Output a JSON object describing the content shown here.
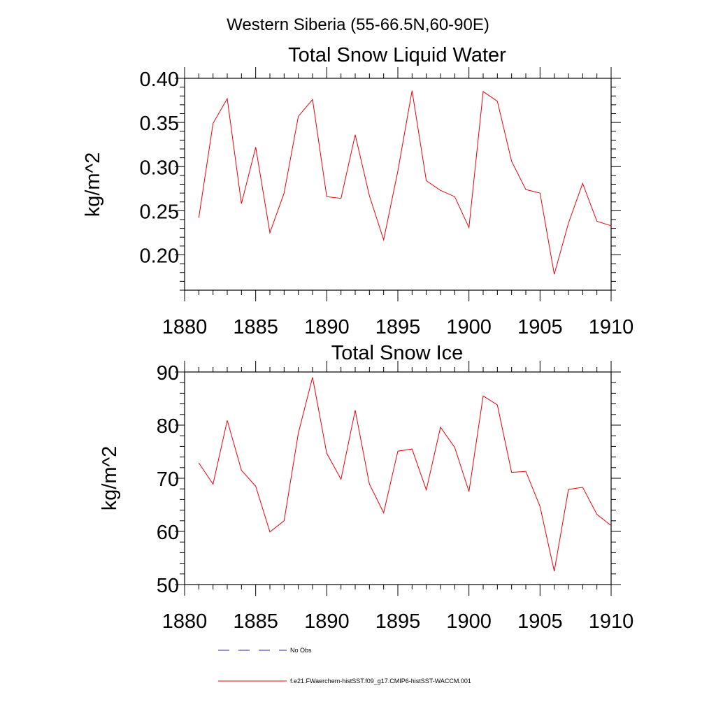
{
  "figure": {
    "suptitle": "Western Siberia (55-66.5N,60-90E)",
    "line_color": "#e8000b",
    "obs_color": "#2a2aa0",
    "legend": {
      "obs_label": "No Obs",
      "model_label": "f.e21.FWaerchem-histSST.f09_g17.CMIP6-histSST-WACCM.001"
    }
  },
  "chart_data": [
    {
      "type": "line",
      "title": "Total Snow Liquid Water",
      "xlabel": "",
      "ylabel": "kg/m^2",
      "xlim": [
        1880,
        1910
      ],
      "ylim": [
        0.16,
        0.4
      ],
      "xticks": [
        "1880",
        "1885",
        "1890",
        "1895",
        "1900",
        "1905",
        "1910"
      ],
      "yticks": [
        "0.20",
        "0.25",
        "0.30",
        "0.35",
        "0.40"
      ],
      "x": [
        1881,
        1882,
        1883,
        1884,
        1885,
        1886,
        1887,
        1888,
        1889,
        1890,
        1891,
        1892,
        1893,
        1894,
        1895,
        1896,
        1897,
        1898,
        1899,
        1900,
        1901,
        1902,
        1903,
        1904,
        1905,
        1906,
        1907,
        1908,
        1909,
        1910
      ],
      "series": [
        {
          "values": [
            0.242,
            0.349,
            0.377,
            0.258,
            0.322,
            0.225,
            0.27,
            0.357,
            0.376,
            0.266,
            0.264,
            0.336,
            0.267,
            0.217,
            0.295,
            0.386,
            0.284,
            0.273,
            0.266,
            0.231,
            0.385,
            0.374,
            0.306,
            0.274,
            0.27,
            0.178,
            0.236,
            0.281,
            0.238,
            0.233
          ]
        }
      ],
      "grid": false,
      "legend": "bottom"
    },
    {
      "type": "line",
      "title": "Total Snow Ice",
      "xlabel": "",
      "ylabel": "kg/m^2",
      "xlim": [
        1880,
        1910
      ],
      "ylim": [
        50,
        90
      ],
      "xticks": [
        "1880",
        "1885",
        "1890",
        "1895",
        "1900",
        "1905",
        "1910"
      ],
      "yticks": [
        "50",
        "60",
        "70",
        "80",
        "90"
      ],
      "x": [
        1881,
        1882,
        1883,
        1884,
        1885,
        1886,
        1887,
        1888,
        1889,
        1890,
        1891,
        1892,
        1893,
        1894,
        1895,
        1896,
        1897,
        1898,
        1899,
        1900,
        1901,
        1902,
        1903,
        1904,
        1905,
        1906,
        1907,
        1908,
        1909,
        1910
      ],
      "series": [
        {
          "values": [
            72.9,
            68.9,
            80.9,
            71.5,
            68.5,
            59.9,
            62.0,
            78.5,
            89.0,
            74.7,
            69.8,
            82.8,
            68.9,
            63.5,
            75.1,
            75.5,
            67.8,
            79.6,
            75.8,
            67.5,
            85.5,
            83.8,
            71.1,
            71.3,
            64.7,
            52.5,
            67.9,
            68.3,
            63.2,
            61.1
          ]
        }
      ],
      "grid": false,
      "legend": "bottom"
    }
  ]
}
